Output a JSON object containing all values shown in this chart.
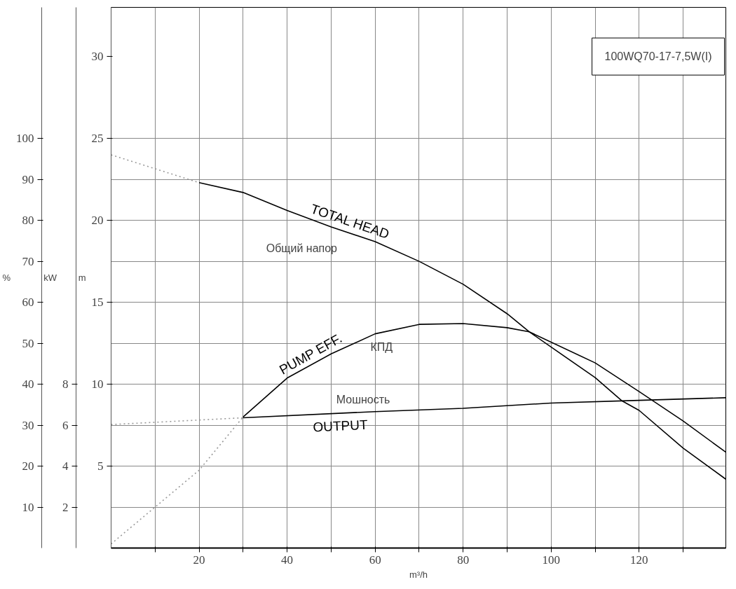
{
  "chart_data": {
    "type": "line",
    "title": "100WQ70-17-7,5W(I)",
    "xlabel": "m³/h",
    "ylabel": "m",
    "y2label": "%",
    "y3label": "kW",
    "xlim": [
      0,
      139.7
    ],
    "xticks": [
      {
        "value": 10,
        "label": null
      },
      20,
      {
        "value": 30,
        "label": null
      },
      40,
      {
        "value": 50,
        "label": null
      },
      60,
      {
        "value": 70,
        "label": null
      },
      80,
      {
        "value": 90,
        "label": null
      },
      100,
      {
        "value": 110,
        "label": null
      },
      120,
      {
        "value": 130,
        "label": null
      }
    ],
    "ylim": [
      0,
      33
    ],
    "yticks": [
      5,
      10,
      15,
      20,
      25,
      30
    ],
    "y2lim": [
      0,
      132
    ],
    "y2ticks": [
      10,
      20,
      30,
      40,
      50,
      60,
      70,
      80,
      90,
      100
    ],
    "y3lim": [
      0,
      26.4
    ],
    "y3ticks": [
      2,
      4,
      6,
      8
    ],
    "grid": true,
    "marker": "none",
    "series": [
      {
        "axis": "y",
        "line_style": "dotted",
        "color": "#999999",
        "x": [
          0,
          20
        ],
        "values": [
          24.0,
          22.3
        ]
      },
      {
        "name": "TOTAL HEAD",
        "axis": "y",
        "line_style": "solid",
        "color": "#000000",
        "x": [
          20,
          30,
          40,
          50,
          60,
          70,
          80,
          90,
          95,
          110,
          116,
          120,
          130,
          139.7
        ],
        "values": [
          22.3,
          21.7,
          20.6,
          19.6,
          18.7,
          17.5,
          16.1,
          14.3,
          13.2,
          10.4,
          9.0,
          8.4,
          6.1,
          4.2
        ]
      },
      {
        "axis": "y2",
        "line_style": "dotted",
        "color": "#999999",
        "x": [
          0,
          10,
          20,
          30
        ],
        "values": [
          1,
          10,
          19,
          32
        ]
      },
      {
        "name": "PUMP EFF.",
        "axis": "y2",
        "line_style": "solid",
        "color": "#000000",
        "x": [
          30,
          40,
          50,
          60,
          70,
          80,
          90,
          95,
          110,
          120,
          130,
          139.7
        ],
        "values": [
          32,
          41.5,
          47.4,
          52.3,
          54.6,
          54.8,
          53.8,
          52.8,
          45.2,
          38.2,
          31.0,
          23.4
        ]
      },
      {
        "axis": "y3",
        "line_style": "dotted",
        "color": "#999999",
        "x": [
          0,
          30
        ],
        "values": [
          6.03,
          6.36
        ]
      },
      {
        "name": "OUTPUT",
        "axis": "y3",
        "line_style": "solid",
        "color": "#000000",
        "x": [
          30,
          60,
          80,
          100,
          120,
          139.7
        ],
        "values": [
          6.36,
          6.66,
          6.82,
          7.08,
          7.21,
          7.34
        ]
      }
    ],
    "annotations": [
      "Общий напор",
      "КПД",
      "Мошность"
    ]
  }
}
